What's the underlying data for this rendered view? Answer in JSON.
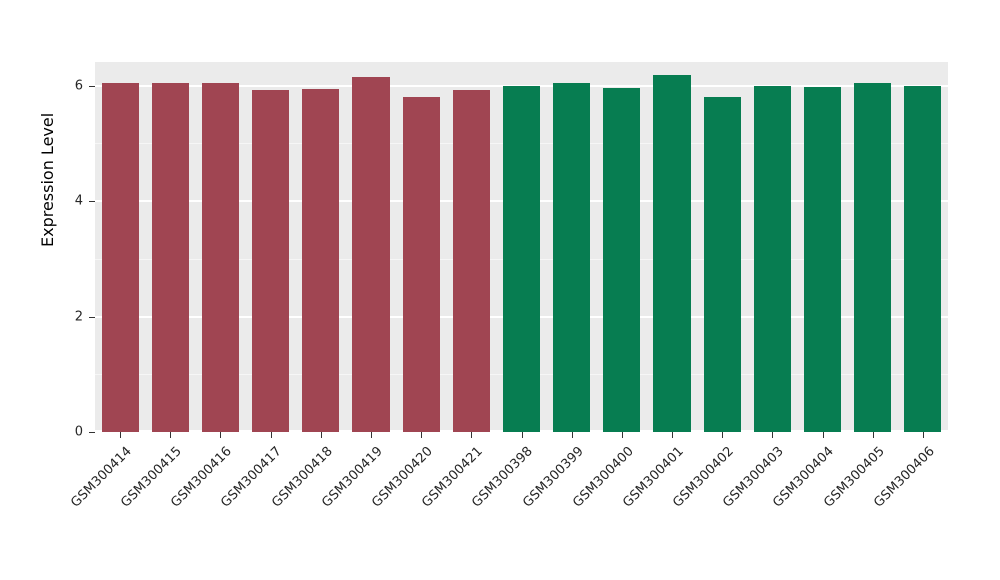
{
  "chart_data": {
    "type": "bar",
    "title": "",
    "xlabel": "",
    "ylabel": "Expression Level",
    "categories": [
      "GSM300414",
      "GSM300415",
      "GSM300416",
      "GSM300417",
      "GSM300418",
      "GSM300419",
      "GSM300420",
      "GSM300421",
      "GSM300398",
      "GSM300399",
      "GSM300400",
      "GSM300401",
      "GSM300402",
      "GSM300403",
      "GSM300404",
      "GSM300405",
      "GSM300406"
    ],
    "values": [
      6.05,
      6.06,
      6.05,
      5.93,
      5.95,
      6.16,
      5.82,
      5.93,
      6.0,
      6.05,
      5.97,
      6.2,
      5.82,
      6.0,
      5.98,
      6.05,
      6.0
    ],
    "bar_colors": [
      "#A04552",
      "#A04552",
      "#A04552",
      "#A04552",
      "#A04552",
      "#A04552",
      "#A04552",
      "#A04552",
      "#077D51",
      "#077D51",
      "#077D51",
      "#077D51",
      "#077D51",
      "#077D51",
      "#077D51",
      "#077D51",
      "#077D51"
    ],
    "group_colors": {
      "group1": "#A04552",
      "group2": "#077D51"
    },
    "yticks": [
      0,
      2,
      4,
      6
    ],
    "yticks_minor": [
      1,
      3,
      5
    ],
    "ylim": [
      0,
      6.42
    ],
    "grid": true,
    "legend": false,
    "panel_bg": "#EBEBEB",
    "grid_color": "#FFFFFF"
  }
}
